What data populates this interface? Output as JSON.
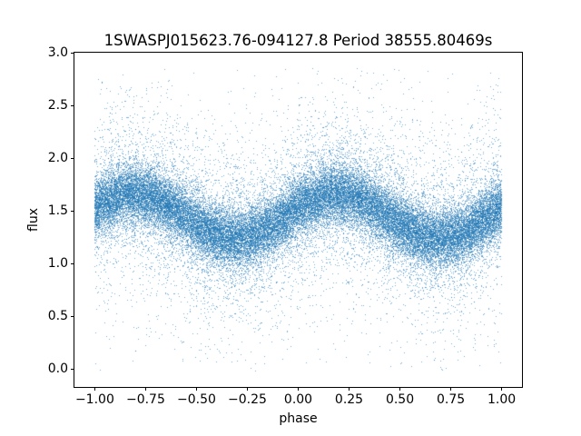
{
  "figure": {
    "background_color": "#ffffff"
  },
  "chart": {
    "title": "1SWASPJ015623.76-094127.8 Period 38555.80469s",
    "xlabel": "phase",
    "ylabel": "flux"
  },
  "chart_data": {
    "type": "scatter",
    "title": "1SWASPJ015623.76-094127.8 Period 38555.80469s",
    "xlabel": "phase",
    "ylabel": "flux",
    "xlim": [
      -1.1,
      1.1
    ],
    "ylim": [
      -0.171,
      3.0
    ],
    "grid": false,
    "legend": null,
    "x_ticks": [
      {
        "value": -1.0,
        "label": "−1.00"
      },
      {
        "value": -0.75,
        "label": "−0.75"
      },
      {
        "value": -0.5,
        "label": "−0.50"
      },
      {
        "value": -0.25,
        "label": "−0.25"
      },
      {
        "value": 0.0,
        "label": "0.00"
      },
      {
        "value": 0.25,
        "label": "0.25"
      },
      {
        "value": 0.5,
        "label": "0.50"
      },
      {
        "value": 0.75,
        "label": "0.75"
      },
      {
        "value": 1.0,
        "label": "1.00"
      }
    ],
    "y_ticks": [
      {
        "value": 0.0,
        "label": "0.0"
      },
      {
        "value": 0.5,
        "label": "0.5"
      },
      {
        "value": 1.0,
        "label": "1.0"
      },
      {
        "value": 1.5,
        "label": "1.5"
      },
      {
        "value": 2.0,
        "label": "2.0"
      },
      {
        "value": 2.5,
        "label": "2.5"
      },
      {
        "value": 3.0,
        "label": "3.0"
      }
    ],
    "point_color": "#1f77b4",
    "point_alpha": 0.6,
    "marker_size_px": 1,
    "n_points": 45000,
    "seed": 7,
    "phase_range": [
      -1.0,
      1.0
    ],
    "band_model": {
      "description": "dense sinusoidal band of the folded light curve",
      "mean_flux": 1.45,
      "amplitude": 0.21,
      "peak_phase": 0.19,
      "period": 1.0
    },
    "band_centers_sampled": [
      {
        "phase": -1.0,
        "flux": 1.53
      },
      {
        "phase": -0.75,
        "flux": 1.65
      },
      {
        "phase": -0.5,
        "flux": 1.37
      },
      {
        "phase": -0.25,
        "flux": 1.25
      },
      {
        "phase": 0.0,
        "flux": 1.53
      },
      {
        "phase": 0.25,
        "flux": 1.65
      },
      {
        "phase": 0.5,
        "flux": 1.37
      },
      {
        "phase": 0.75,
        "flux": 1.25
      },
      {
        "phase": 1.0,
        "flux": 1.53
      }
    ],
    "noise_mixture": [
      {
        "fraction": 0.72,
        "sigma": 0.135
      },
      {
        "fraction": 0.18,
        "sigma": 0.3
      },
      {
        "fraction": 0.1,
        "sigma": 0.62
      }
    ],
    "flux_clip": [
      -0.027,
      2.856
    ]
  }
}
